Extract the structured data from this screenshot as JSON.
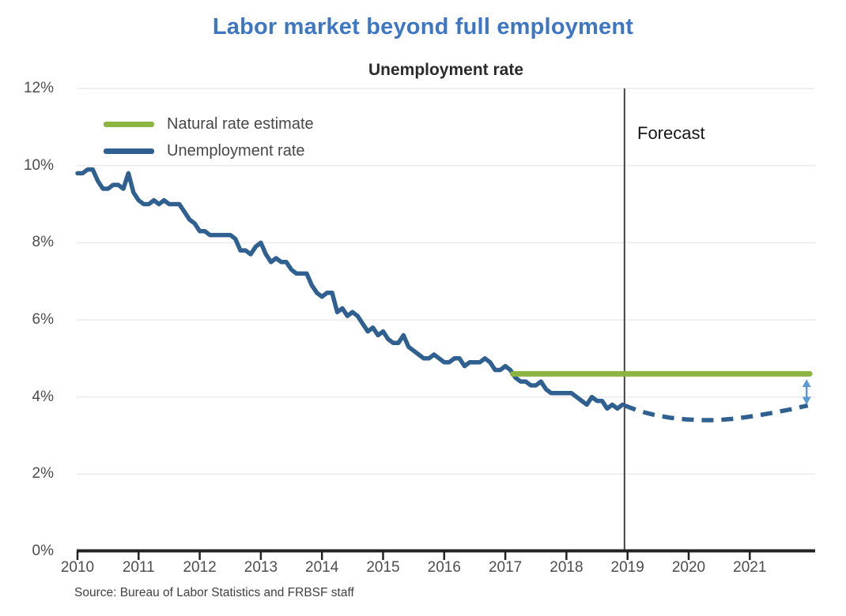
{
  "title": "Labor market beyond full employment",
  "forecast_label": "Forecast",
  "source": "Source: Bureau of Labor Statistics and FRBSF staff",
  "legend": [
    {
      "label": "Natural rate estimate",
      "color": "#8cb440"
    },
    {
      "label": "Unemployment rate",
      "color": "#2f608f"
    }
  ],
  "colors": {
    "title_blue": "#3d76c2",
    "line_blue": "#2f608f",
    "line_green": "#8cb440",
    "arrow_blue": "#5b9bd5",
    "gridline": "#ececec",
    "axis": "#222222",
    "divider": "#444444"
  },
  "chart_data": {
    "type": "line",
    "title": "Unemployment rate",
    "xlabel": "",
    "ylabel": "Unemployment rate (%)",
    "x_range": [
      2010,
      2022
    ],
    "y_range": [
      0,
      12
    ],
    "grid": "horizontal",
    "legend_position": "top-left",
    "x_ticks": [
      "2010",
      "2011",
      "2012",
      "2013",
      "2014",
      "2015",
      "2016",
      "2017",
      "2018",
      "2019",
      "2020",
      "2021"
    ],
    "y_ticks": [
      "12%",
      "10%",
      "8%",
      "6%",
      "4%",
      "2%",
      "0%"
    ],
    "y_tick_values": [
      12,
      10,
      8,
      6,
      4,
      2,
      0
    ],
    "forecast_divider_x": 2018.95,
    "series": [
      {
        "name": "Unemployment rate",
        "color": "#2f608f",
        "style": "solid",
        "width": 5.5,
        "monthly_start": 2010,
        "monthly_values": [
          9.8,
          9.8,
          9.9,
          9.9,
          9.6,
          9.4,
          9.4,
          9.5,
          9.5,
          9.4,
          9.8,
          9.3,
          9.1,
          9.0,
          9.0,
          9.1,
          9.0,
          9.1,
          9.0,
          9.0,
          9.0,
          8.8,
          8.6,
          8.5,
          8.3,
          8.3,
          8.2,
          8.2,
          8.2,
          8.2,
          8.2,
          8.1,
          7.8,
          7.8,
          7.7,
          7.9,
          8.0,
          7.7,
          7.5,
          7.6,
          7.5,
          7.5,
          7.3,
          7.2,
          7.2,
          7.2,
          6.9,
          6.7,
          6.6,
          6.7,
          6.7,
          6.2,
          6.3,
          6.1,
          6.2,
          6.1,
          5.9,
          5.7,
          5.8,
          5.6,
          5.7,
          5.5,
          5.4,
          5.4,
          5.6,
          5.3,
          5.2,
          5.1,
          5.0,
          5.0,
          5.1,
          5.0,
          4.9,
          4.9,
          5.0,
          5.0,
          4.8,
          4.9,
          4.9,
          4.9,
          5.0,
          4.9,
          4.7,
          4.7,
          4.8,
          4.7,
          4.5,
          4.4,
          4.4,
          4.3,
          4.3,
          4.4,
          4.2,
          4.1,
          4.1,
          4.1,
          4.1,
          4.1,
          4.0,
          3.9,
          3.8,
          4.0,
          3.9,
          3.9,
          3.7,
          3.8,
          3.7,
          3.8
        ]
      },
      {
        "name": "Natural rate estimate",
        "color": "#8cb440",
        "style": "solid",
        "width": 7,
        "points": [
          [
            2017.12,
            4.6
          ],
          [
            2021.98,
            4.6
          ]
        ]
      },
      {
        "name": "Unemployment rate forecast",
        "color": "#2f608f",
        "style": "dashed",
        "width": 5.5,
        "points": [
          [
            2018.95,
            3.78
          ],
          [
            2019.2,
            3.63
          ],
          [
            2019.45,
            3.53
          ],
          [
            2019.7,
            3.46
          ],
          [
            2019.95,
            3.42
          ],
          [
            2020.2,
            3.4
          ],
          [
            2020.45,
            3.4
          ],
          [
            2020.7,
            3.43
          ],
          [
            2020.95,
            3.48
          ],
          [
            2021.2,
            3.54
          ],
          [
            2021.45,
            3.61
          ],
          [
            2021.7,
            3.69
          ],
          [
            2021.95,
            3.78
          ]
        ]
      }
    ],
    "gap_arrow": {
      "x": 2021.93,
      "top": 4.44,
      "bottom": 3.82,
      "color": "#5b9bd5"
    }
  }
}
